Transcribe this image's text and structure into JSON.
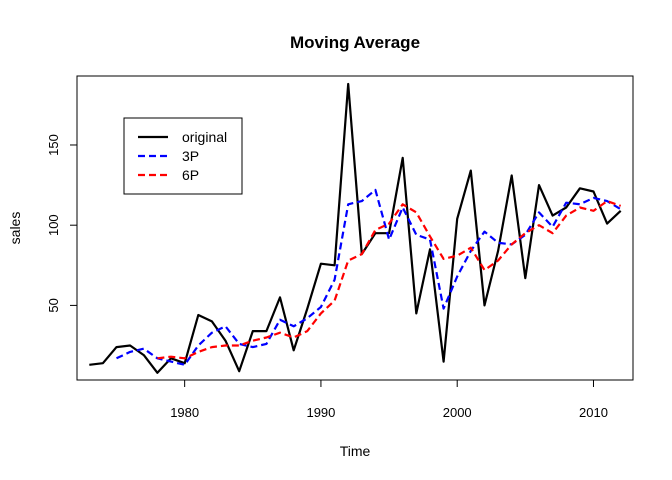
{
  "chart_data": {
    "type": "line",
    "title": "Moving Average",
    "xlabel": "Time",
    "ylabel": "sales",
    "xlim": [
      1972.1,
      2012.9
    ],
    "ylim": [
      3.5,
      193
    ],
    "xticks": [
      1980,
      1990,
      2000,
      2010
    ],
    "yticks": [
      50,
      100,
      150
    ],
    "legend_position": "top-left",
    "grid": false,
    "series": [
      {
        "name": "original",
        "color": "#000000",
        "dash": "solid",
        "x": [
          1973,
          1974,
          1975,
          1976,
          1977,
          1978,
          1979,
          1980,
          1981,
          1982,
          1983,
          1984,
          1985,
          1986,
          1987,
          1988,
          1989,
          1990,
          1991,
          1992,
          1993,
          1994,
          1995,
          1996,
          1997,
          1998,
          1999,
          2000,
          2001,
          2002,
          2003,
          2004,
          2005,
          2006,
          2007,
          2008,
          2009,
          2010,
          2011,
          2012
        ],
        "values": [
          13,
          14,
          24,
          25,
          19,
          8,
          17,
          14,
          44,
          40,
          28,
          9,
          34,
          34,
          55,
          22,
          48,
          76,
          75,
          188,
          82,
          95,
          95,
          142,
          45,
          85,
          15,
          104,
          134,
          50,
          84,
          131,
          67,
          125,
          106,
          111,
          123,
          121,
          101,
          109
        ]
      },
      {
        "name": "3P",
        "color": "#0000ff",
        "dash": "dashed",
        "x": [
          1975,
          1976,
          1977,
          1978,
          1979,
          1980,
          1981,
          1982,
          1983,
          1984,
          1985,
          1986,
          1987,
          1988,
          1989,
          1990,
          1991,
          1992,
          1993,
          1994,
          1995,
          1996,
          1997,
          1998,
          1999,
          2000,
          2001,
          2002,
          2003,
          2004,
          2005,
          2006,
          2007,
          2008,
          2009,
          2010,
          2011,
          2012
        ],
        "values": [
          17,
          21,
          23,
          17,
          15,
          13,
          25,
          33,
          37,
          26,
          24,
          26,
          41,
          37,
          42,
          49,
          66,
          113,
          115,
          122,
          91,
          111,
          94,
          91,
          48,
          68,
          84,
          96,
          89,
          88,
          94,
          108,
          99,
          114,
          113,
          117,
          115,
          110
        ]
      },
      {
        "name": "6P",
        "color": "#ff0000",
        "dash": "dashed",
        "x": [
          1978,
          1979,
          1980,
          1981,
          1982,
          1983,
          1984,
          1985,
          1986,
          1987,
          1988,
          1989,
          1990,
          1991,
          1992,
          1993,
          1994,
          1995,
          1996,
          1997,
          1998,
          1999,
          2000,
          2001,
          2002,
          2003,
          2004,
          2005,
          2006,
          2007,
          2008,
          2009,
          2010,
          2011,
          2012
        ],
        "values": [
          17,
          18,
          17,
          21,
          24,
          25,
          25,
          28,
          30,
          33,
          30,
          34,
          45,
          53,
          78,
          82,
          97,
          101,
          113,
          108,
          93,
          79,
          81,
          86,
          72,
          78,
          88,
          95,
          100,
          95,
          106,
          111,
          109,
          115,
          112
        ]
      }
    ]
  }
}
